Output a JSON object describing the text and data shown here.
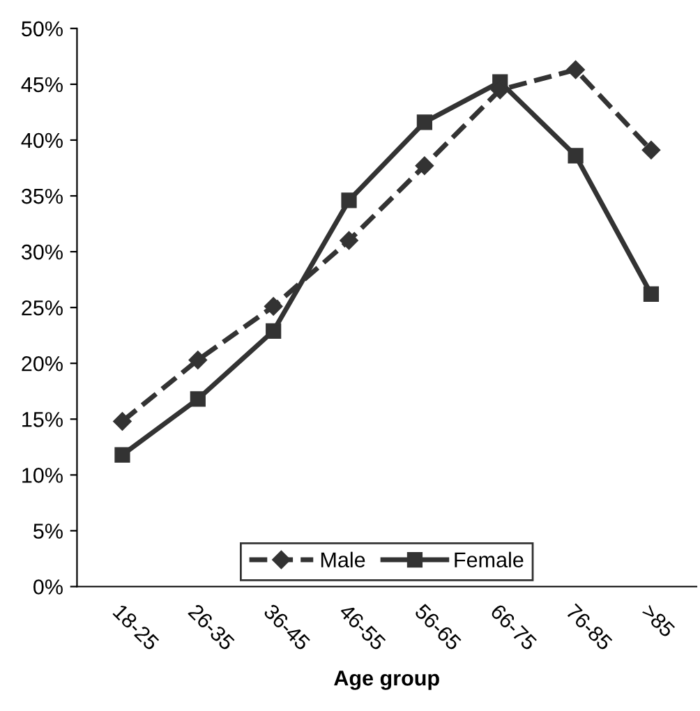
{
  "chart_data": {
    "type": "line",
    "xlabel": "Age group",
    "categories": [
      "18-25",
      "26-35",
      "36-45",
      "46-55",
      "56-65",
      "66-75",
      "76-85",
      ">85"
    ],
    "series": [
      {
        "name": "Male",
        "color": "#333333",
        "marker": "diamond",
        "line_style": "dashed",
        "values": [
          14.8,
          20.3,
          25.1,
          31.0,
          37.7,
          44.5,
          46.3,
          39.1
        ]
      },
      {
        "name": "Female",
        "color": "#333333",
        "marker": "square",
        "line_style": "solid",
        "values": [
          11.8,
          16.8,
          22.9,
          34.6,
          41.6,
          45.2,
          38.6,
          26.2
        ]
      }
    ],
    "ylim": [
      0,
      50
    ],
    "yticks": [
      {
        "value": 0,
        "label": "0%"
      },
      {
        "value": 5,
        "label": "5%"
      },
      {
        "value": 10,
        "label": "10%"
      },
      {
        "value": 15,
        "label": "15%"
      },
      {
        "value": 20,
        "label": "20%"
      },
      {
        "value": 25,
        "label": "25%"
      },
      {
        "value": 30,
        "label": "30%"
      },
      {
        "value": 35,
        "label": "35%"
      },
      {
        "value": 40,
        "label": "40%"
      },
      {
        "value": 45,
        "label": "45%"
      },
      {
        "value": 50,
        "label": "50%"
      }
    ],
    "grid": false,
    "legend": "bottom"
  }
}
